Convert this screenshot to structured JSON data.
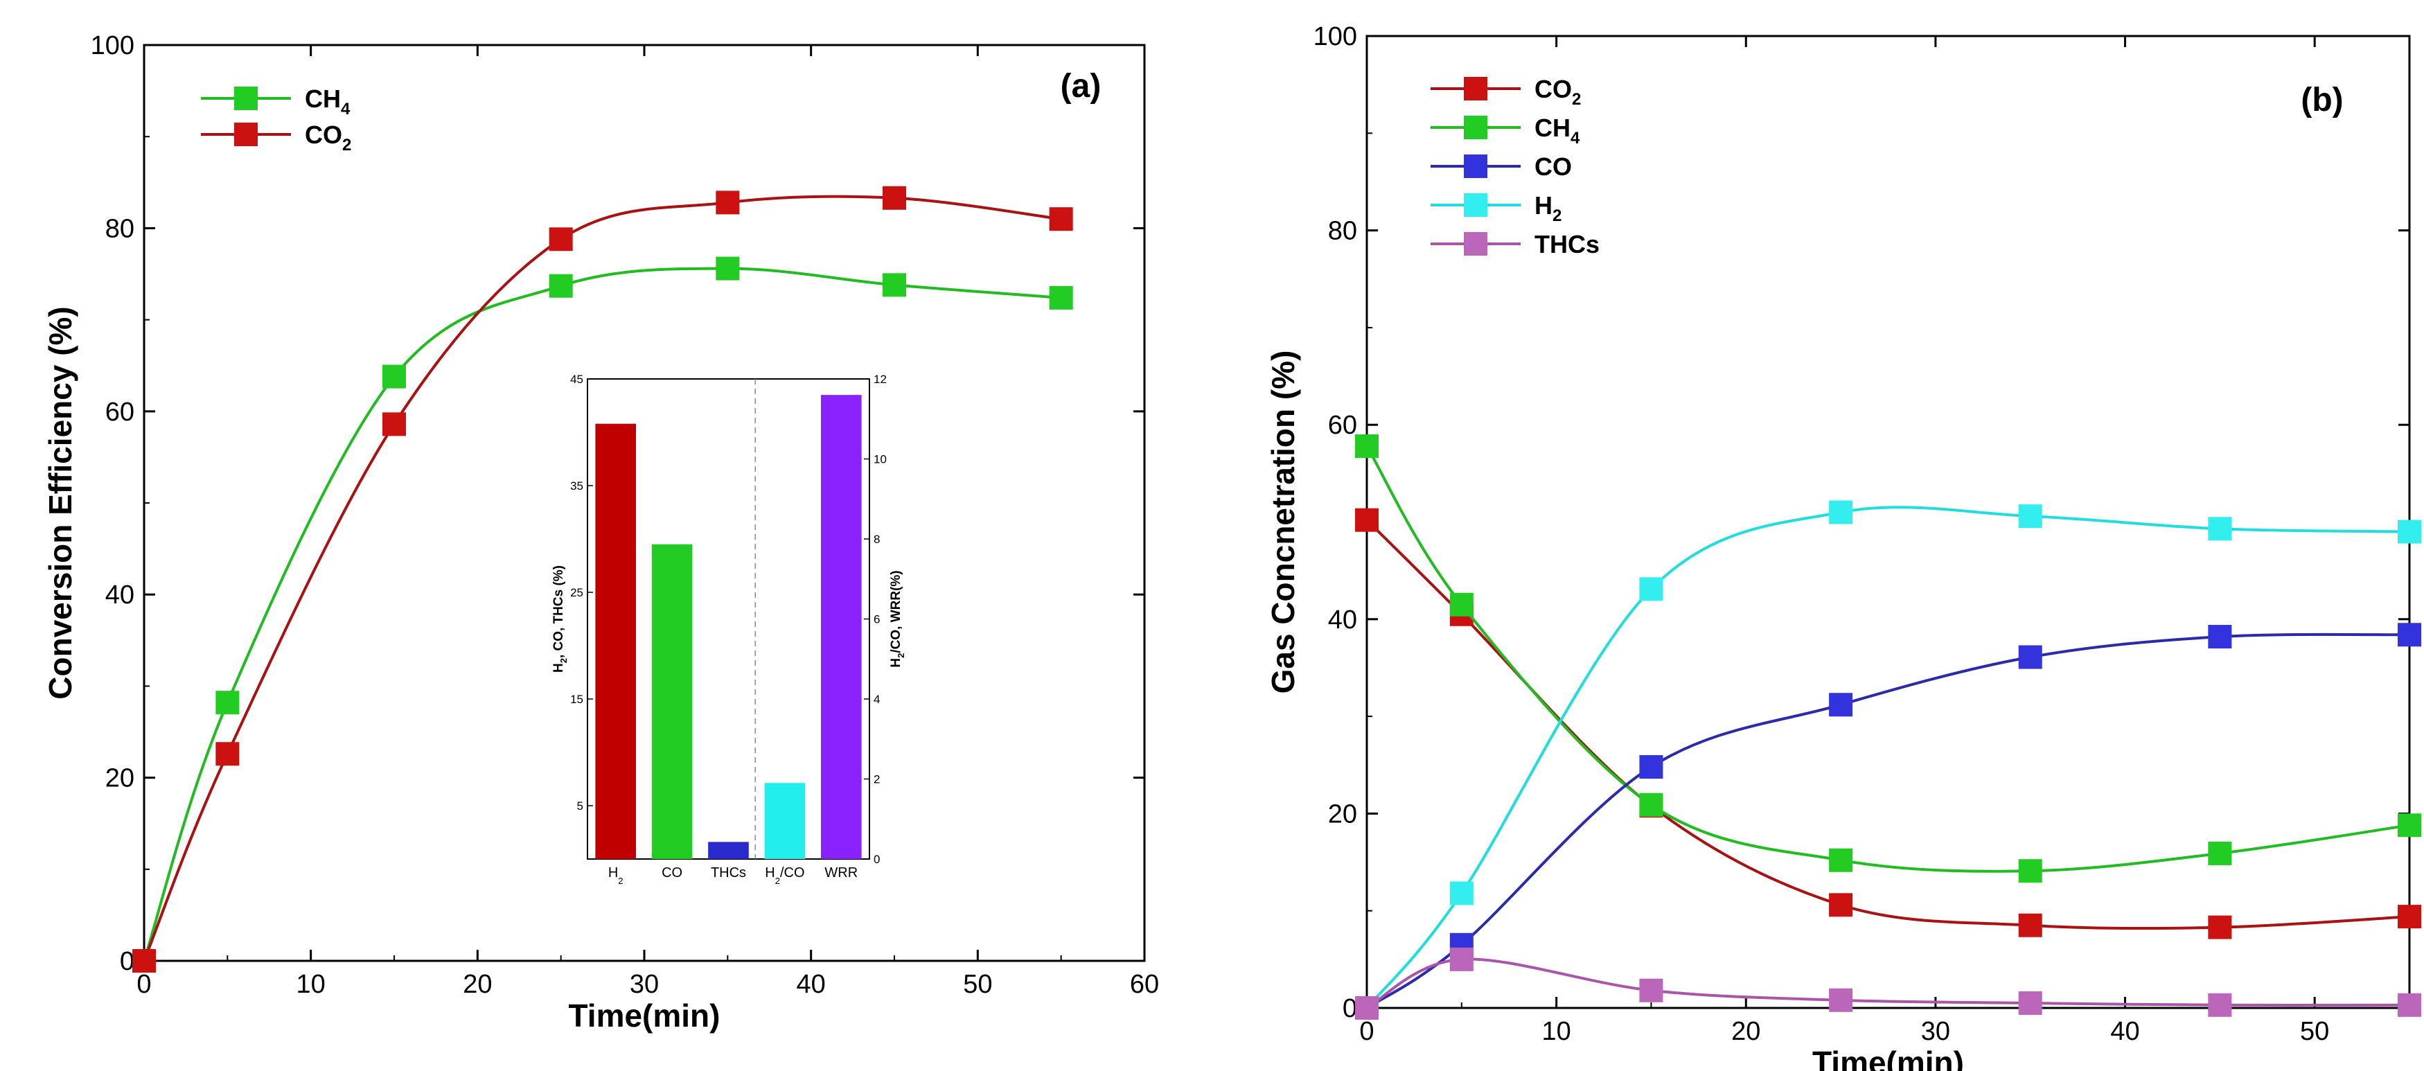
{
  "chart_data": [
    {
      "type": "line",
      "panel_label": "(a)",
      "xlabel": "Time(min)",
      "ylabel": "Conversion Efficiency (%)",
      "xlim": [
        0,
        60
      ],
      "ylim": [
        0,
        100
      ],
      "xticks": [
        "0",
        "10",
        "20",
        "30",
        "40",
        "50",
        "60"
      ],
      "yticks": [
        "0",
        "20",
        "40",
        "60",
        "80",
        "100"
      ],
      "legend_position": "top-left",
      "series": [
        {
          "name": "CH",
          "subscript": "4",
          "color": "#22bb22",
          "marker_color": "#22cc22",
          "x": [
            0,
            5,
            15,
            25,
            35,
            45,
            55
          ],
          "y": [
            0,
            28.2,
            63.8,
            73.7,
            75.6,
            73.8,
            72.4
          ]
        },
        {
          "name": "CO",
          "subscript": "2",
          "color": "#aa1111",
          "marker_color": "#cc1111",
          "x": [
            0,
            5,
            15,
            25,
            35,
            45,
            55
          ],
          "y": [
            0,
            22.6,
            58.6,
            78.8,
            82.8,
            83.3,
            81.0
          ]
        }
      ],
      "inset": {
        "type": "bar",
        "categories": [
          {
            "label": "H",
            "subscript": "2"
          },
          {
            "label": "CO",
            "subscript": ""
          },
          {
            "label": "THCs",
            "subscript": ""
          },
          {
            "label": "H",
            "subscript": "2",
            "suffix": "/CO"
          },
          {
            "label": "WRR",
            "subscript": ""
          }
        ],
        "values": [
          40.8,
          29.5,
          1.6,
          1.9,
          11.6
        ],
        "axis": [
          "left",
          "left",
          "left",
          "right",
          "right"
        ],
        "colors": [
          "#c00000",
          "#22cc22",
          "#2a2acc",
          "#22eeee",
          "#8a22ff"
        ],
        "left_ylim": [
          0,
          45
        ],
        "left_ticks": [
          "5",
          "15",
          "25",
          "35",
          "45"
        ],
        "right_ylim": [
          0,
          12
        ],
        "right_ticks": [
          "0",
          "2",
          "4",
          "6",
          "8",
          "10",
          "12"
        ],
        "left_ylabel": {
          "p1": "H",
          "s1": "2",
          "p2": ", CO, THCs (%)"
        },
        "right_ylabel": {
          "p1": "H",
          "s1": "2",
          "p2": "/CO, WRR(%)"
        }
      }
    },
    {
      "type": "line",
      "panel_label": "(b)",
      "xlabel": "Time(min)",
      "ylabel": "Gas Concnetration (%)",
      "xlim": [
        0,
        55
      ],
      "ylim": [
        0,
        100
      ],
      "xticks": [
        "0",
        "10",
        "20",
        "30",
        "40",
        "50"
      ],
      "yticks": [
        "0",
        "20",
        "40",
        "60",
        "80",
        "100"
      ],
      "legend_position": "top-left",
      "series": [
        {
          "name": "CO",
          "subscript": "2",
          "color": "#aa1111",
          "marker_color": "#cc1111",
          "x": [
            0,
            5,
            15,
            25,
            35,
            45,
            55
          ],
          "y": [
            50.2,
            40.5,
            20.8,
            10.6,
            8.5,
            8.3,
            9.4
          ]
        },
        {
          "name": "CH",
          "subscript": "4",
          "color": "#22bb22",
          "marker_color": "#22cc22",
          "x": [
            0,
            5,
            15,
            25,
            35,
            45,
            55
          ],
          "y": [
            57.8,
            41.5,
            20.9,
            15.2,
            14.1,
            15.9,
            18.8
          ]
        },
        {
          "name": "CO",
          "subscript": "",
          "color": "#2a2aaa",
          "marker_color": "#3333dd",
          "x": [
            0,
            5,
            15,
            25,
            35,
            45,
            55
          ],
          "y": [
            0,
            6.5,
            24.8,
            31.2,
            36.1,
            38.2,
            38.4
          ]
        },
        {
          "name": "H",
          "subscript": "2",
          "color": "#22dddd",
          "marker_color": "#33eeee",
          "x": [
            0,
            5,
            15,
            25,
            35,
            45,
            55
          ],
          "y": [
            0,
            11.8,
            43.1,
            51.0,
            50.6,
            49.3,
            49.0
          ]
        },
        {
          "name": "THCs",
          "subscript": "",
          "color": "#aa55aa",
          "marker_color": "#bb66bb",
          "x": [
            0,
            5,
            15,
            25,
            35,
            45,
            55
          ],
          "y": [
            0,
            5.0,
            1.8,
            0.8,
            0.5,
            0.3,
            0.3
          ]
        }
      ]
    }
  ]
}
